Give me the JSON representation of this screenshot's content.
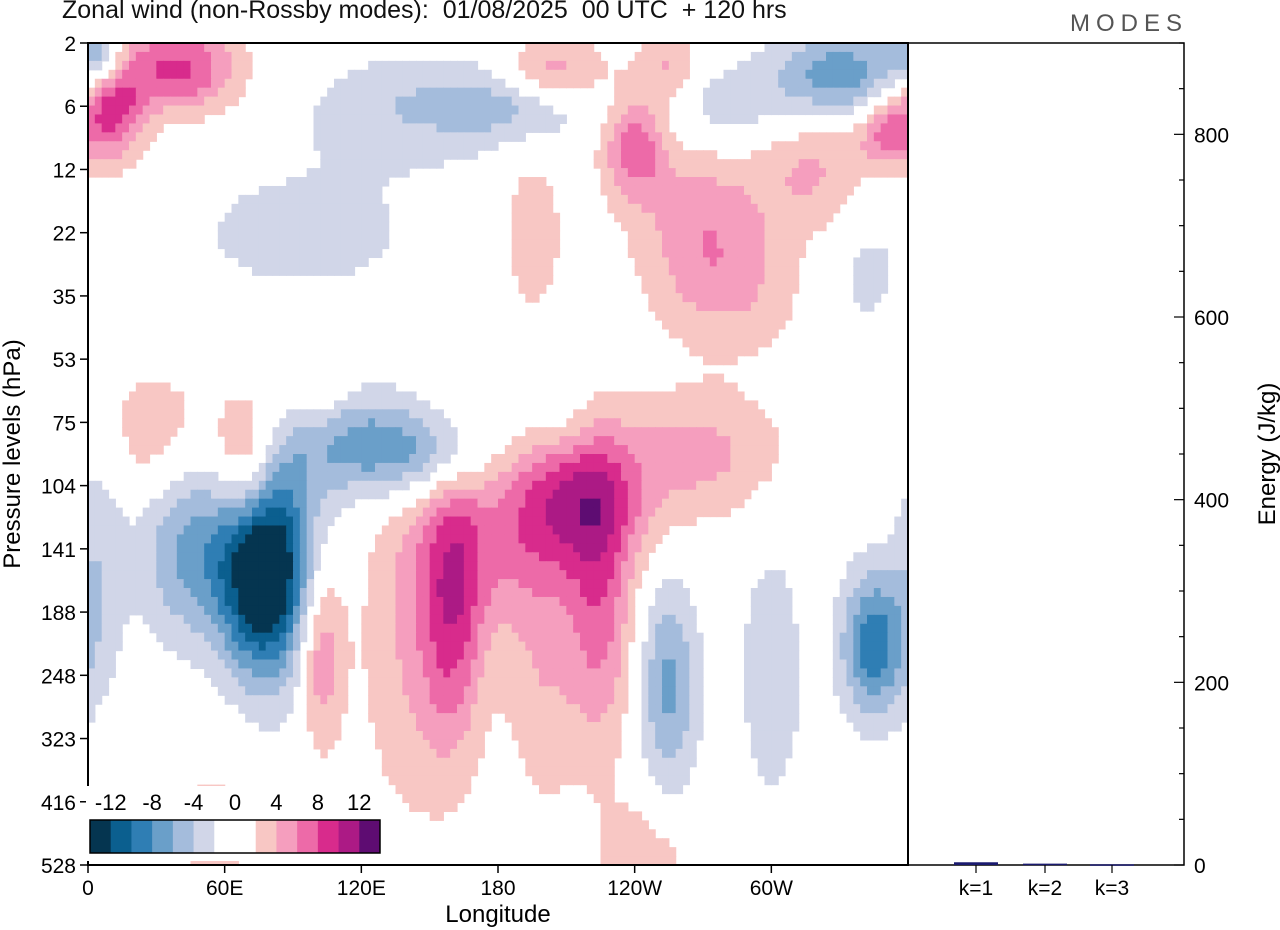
{
  "header": {
    "title": "Zonal wind (non-Rossby modes):  01/08/2025  00 UTC  + 120 hrs",
    "brand": "MODES"
  },
  "colors": {
    "neg": [
      "#053550",
      "#0b5f8f",
      "#2f7eb4",
      "#6a9fc9",
      "#a4bcdc",
      "#d1d6e8"
    ],
    "pos": [
      "#f8c7c4",
      "#f59ebe",
      "#ed6aa8",
      "#d82b8c",
      "#ac1a85",
      "#5e0c72"
    ],
    "bar": "#1a1a6e"
  },
  "chart_data": [
    {
      "type": "heatmap",
      "title": "Zonal wind (non-Rossby modes)",
      "xlabel": "Longitude",
      "ylabel": "Pressure levels (hPa)",
      "x_ticks": [
        "0",
        "60E",
        "120E",
        "180",
        "120W",
        "60W"
      ],
      "x_tick_degrees": [
        0,
        60,
        120,
        180,
        240,
        300
      ],
      "xlim": [
        0,
        360
      ],
      "y_ticks": [
        "2",
        "6",
        "12",
        "22",
        "35",
        "53",
        "75",
        "104",
        "141",
        "188",
        "248",
        "323",
        "416",
        "528"
      ],
      "colorbar": {
        "ticks": [
          "-12",
          "-8",
          "-4",
          "0",
          "4",
          "8",
          "12"
        ],
        "levels": [
          -14,
          -12,
          -10,
          -8,
          -6,
          -4,
          -2,
          0,
          2,
          4,
          6,
          8,
          10,
          12,
          14
        ]
      },
      "features": [
        {
          "lon": 78,
          "level": 8.3,
          "value": -16,
          "sx": 14,
          "sy": 1.2
        },
        {
          "lon": 45,
          "level": 8.0,
          "value": -6,
          "sx": 16,
          "sy": 1.0
        },
        {
          "lon": 115,
          "level": 6.3,
          "value": -6,
          "sx": 22,
          "sy": 0.6
        },
        {
          "lon": 150,
          "level": 6.5,
          "value": -5,
          "sx": 20,
          "sy": 0.5
        },
        {
          "lon": 70,
          "level": 6.7,
          "value": 7,
          "sx": 10,
          "sy": 0.8
        },
        {
          "lon": 30,
          "level": 6.2,
          "value": 3,
          "sx": 18,
          "sy": 0.8
        },
        {
          "lon": 100,
          "level": 5.5,
          "value": 3,
          "sx": 12,
          "sy": 0.6
        },
        {
          "lon": 160,
          "level": 9.0,
          "value": 7,
          "sx": 10,
          "sy": 1.6
        },
        {
          "lon": 180,
          "level": 8.0,
          "value": 4,
          "sx": 25,
          "sy": 1.0
        },
        {
          "lon": 215,
          "level": 7.2,
          "value": 8,
          "sx": 22,
          "sy": 0.8
        },
        {
          "lon": 225,
          "level": 9.0,
          "value": 6,
          "sx": 10,
          "sy": 1.5
        },
        {
          "lon": 270,
          "level": 6.5,
          "value": 4,
          "sx": 25,
          "sy": 0.7
        },
        {
          "lon": 102,
          "level": 9.6,
          "value": 6,
          "sx": 7,
          "sy": 1.0
        },
        {
          "lon": 140,
          "level": 9.5,
          "value": 3,
          "sx": 15,
          "sy": 2.0
        },
        {
          "lon": 200,
          "level": 10.0,
          "value": 3,
          "sx": 12,
          "sy": 1.5
        },
        {
          "lon": 345,
          "level": 9.5,
          "value": -9,
          "sx": 10,
          "sy": 0.8
        },
        {
          "lon": 255,
          "level": 10.2,
          "value": -6,
          "sx": 9,
          "sy": 1.2
        },
        {
          "lon": 300,
          "level": 10.0,
          "value": -3,
          "sx": 10,
          "sy": 1.5
        },
        {
          "lon": 5,
          "level": 8.2,
          "value": -3,
          "sx": 8,
          "sy": 1.5
        },
        {
          "lon": 245,
          "level": 13.0,
          "value": 3,
          "sx": 15,
          "sy": 0.8
        },
        {
          "lon": 55,
          "level": 12.5,
          "value": 2,
          "sx": 15,
          "sy": 1.2
        },
        {
          "lon": 10,
          "level": 1.0,
          "value": 9,
          "sx": 10,
          "sy": 0.6
        },
        {
          "lon": 40,
          "level": 0.4,
          "value": 8,
          "sx": 18,
          "sy": 0.5
        },
        {
          "lon": 5,
          "level": 0.2,
          "value": -7,
          "sx": 8,
          "sy": 0.4
        },
        {
          "lon": 140,
          "level": 1.0,
          "value": -3,
          "sx": 30,
          "sy": 0.6
        },
        {
          "lon": 190,
          "level": 1.0,
          "value": -4,
          "sx": 25,
          "sy": 0.4
        },
        {
          "lon": 205,
          "level": 0.5,
          "value": 5,
          "sx": 15,
          "sy": 0.4
        },
        {
          "lon": 240,
          "level": 1.6,
          "value": 7,
          "sx": 10,
          "sy": 0.6
        },
        {
          "lon": 255,
          "level": 0.4,
          "value": 4,
          "sx": 10,
          "sy": 0.4
        },
        {
          "lon": 280,
          "level": 1.0,
          "value": -3,
          "sx": 25,
          "sy": 0.5
        },
        {
          "lon": 330,
          "level": 0.5,
          "value": -7,
          "sx": 20,
          "sy": 0.5
        },
        {
          "lon": 350,
          "level": 1.4,
          "value": 6,
          "sx": 8,
          "sy": 0.4
        },
        {
          "lon": 320,
          "level": 2.0,
          "value": 4,
          "sx": 18,
          "sy": 0.8
        },
        {
          "lon": 270,
          "level": 3.0,
          "value": 5,
          "sx": 20,
          "sy": 1.0
        },
        {
          "lon": 195,
          "level": 3.0,
          "value": 3,
          "sx": 10,
          "sy": 1.0
        },
        {
          "lon": 95,
          "level": 3.0,
          "value": -2,
          "sx": 50,
          "sy": 1.0
        },
        {
          "lon": 340,
          "level": 3.5,
          "value": -2,
          "sx": 15,
          "sy": 1.0
        },
        {
          "lon": 290,
          "level": 4.0,
          "value": 2,
          "sx": 20,
          "sy": 0.7
        },
        {
          "lon": 205,
          "level": 6.0,
          "value": -2,
          "sx": 10,
          "sy": 0.4
        }
      ]
    },
    {
      "type": "bar",
      "ylabel": "Energy (J/kg)",
      "ylim": [
        0,
        900
      ],
      "y_ticks": [
        0,
        200,
        400,
        600,
        800
      ],
      "categories": [
        "k=1",
        "k=2",
        "k=3"
      ],
      "values": [
        3,
        1.5,
        0.8
      ]
    }
  ]
}
